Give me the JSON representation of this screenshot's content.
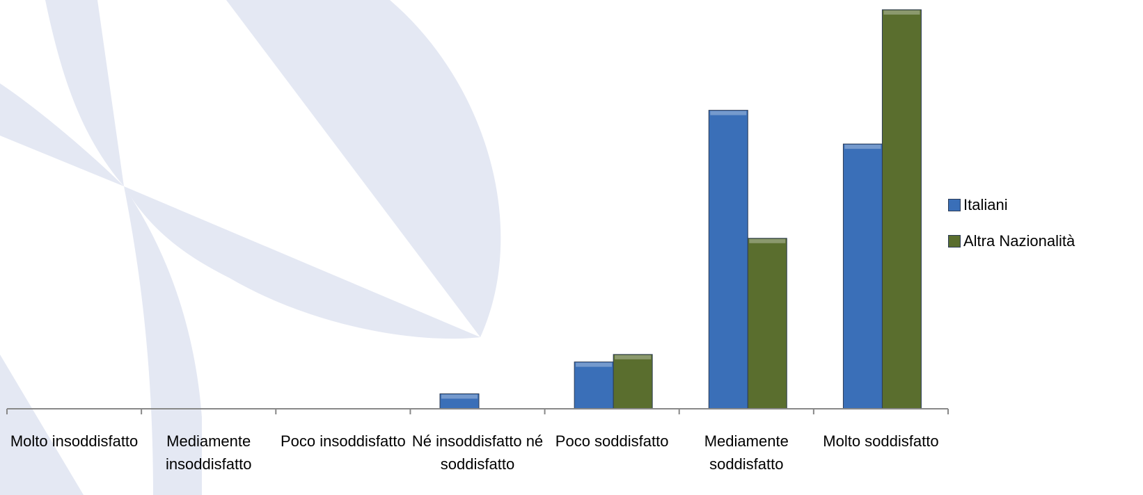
{
  "chart_data": {
    "type": "bar",
    "categories": [
      "Molto insoddisfatto",
      "Mediamente insoddisfatto",
      "Poco insoddisfatto",
      "Né insoddisfatto né soddisfatto",
      "Poco soddisfatto",
      "Mediamente soddisfatto",
      "Molto soddisfatto"
    ],
    "series": [
      {
        "name": "Italiani",
        "color": "#3a6fb8",
        "values": [
          null,
          null,
          null,
          2.4,
          7.5,
          47.8,
          42.4
        ]
      },
      {
        "name": "Altra Nazionalità",
        "color": "#5a6e2e",
        "values": [
          null,
          null,
          null,
          null,
          8.7,
          27.3,
          63.9
        ]
      }
    ],
    "legend": "right"
  }
}
